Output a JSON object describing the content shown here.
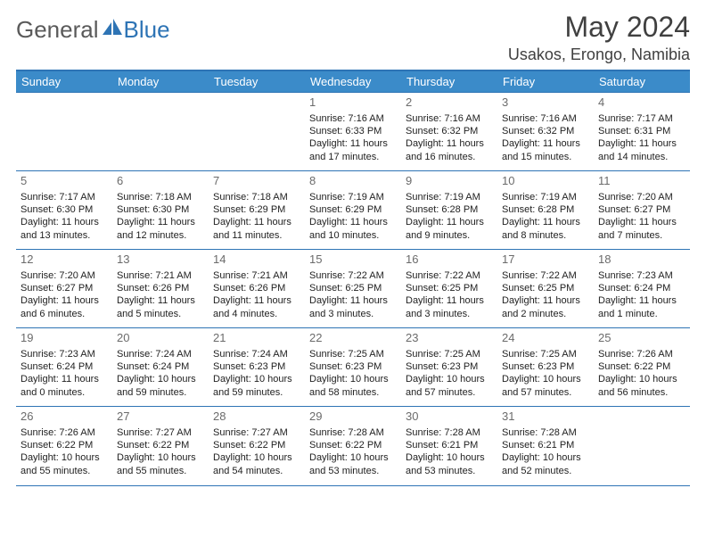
{
  "logo": {
    "text1": "General",
    "text2": "Blue"
  },
  "title": "May 2024",
  "location": "Usakos, Erongo, Namibia",
  "colors": {
    "header_bg": "#3b8bc9",
    "rule": "#2e74b5",
    "title_color": "#404040",
    "daynum_color": "#6b6b6b"
  },
  "weekdays": [
    "Sunday",
    "Monday",
    "Tuesday",
    "Wednesday",
    "Thursday",
    "Friday",
    "Saturday"
  ],
  "weeks": [
    [
      null,
      null,
      null,
      {
        "n": "1",
        "sr": "7:16 AM",
        "ss": "6:33 PM",
        "dl": "11 hours and 17 minutes."
      },
      {
        "n": "2",
        "sr": "7:16 AM",
        "ss": "6:32 PM",
        "dl": "11 hours and 16 minutes."
      },
      {
        "n": "3",
        "sr": "7:16 AM",
        "ss": "6:32 PM",
        "dl": "11 hours and 15 minutes."
      },
      {
        "n": "4",
        "sr": "7:17 AM",
        "ss": "6:31 PM",
        "dl": "11 hours and 14 minutes."
      }
    ],
    [
      {
        "n": "5",
        "sr": "7:17 AM",
        "ss": "6:30 PM",
        "dl": "11 hours and 13 minutes."
      },
      {
        "n": "6",
        "sr": "7:18 AM",
        "ss": "6:30 PM",
        "dl": "11 hours and 12 minutes."
      },
      {
        "n": "7",
        "sr": "7:18 AM",
        "ss": "6:29 PM",
        "dl": "11 hours and 11 minutes."
      },
      {
        "n": "8",
        "sr": "7:19 AM",
        "ss": "6:29 PM",
        "dl": "11 hours and 10 minutes."
      },
      {
        "n": "9",
        "sr": "7:19 AM",
        "ss": "6:28 PM",
        "dl": "11 hours and 9 minutes."
      },
      {
        "n": "10",
        "sr": "7:19 AM",
        "ss": "6:28 PM",
        "dl": "11 hours and 8 minutes."
      },
      {
        "n": "11",
        "sr": "7:20 AM",
        "ss": "6:27 PM",
        "dl": "11 hours and 7 minutes."
      }
    ],
    [
      {
        "n": "12",
        "sr": "7:20 AM",
        "ss": "6:27 PM",
        "dl": "11 hours and 6 minutes."
      },
      {
        "n": "13",
        "sr": "7:21 AM",
        "ss": "6:26 PM",
        "dl": "11 hours and 5 minutes."
      },
      {
        "n": "14",
        "sr": "7:21 AM",
        "ss": "6:26 PM",
        "dl": "11 hours and 4 minutes."
      },
      {
        "n": "15",
        "sr": "7:22 AM",
        "ss": "6:25 PM",
        "dl": "11 hours and 3 minutes."
      },
      {
        "n": "16",
        "sr": "7:22 AM",
        "ss": "6:25 PM",
        "dl": "11 hours and 3 minutes."
      },
      {
        "n": "17",
        "sr": "7:22 AM",
        "ss": "6:25 PM",
        "dl": "11 hours and 2 minutes."
      },
      {
        "n": "18",
        "sr": "7:23 AM",
        "ss": "6:24 PM",
        "dl": "11 hours and 1 minute."
      }
    ],
    [
      {
        "n": "19",
        "sr": "7:23 AM",
        "ss": "6:24 PM",
        "dl": "11 hours and 0 minutes."
      },
      {
        "n": "20",
        "sr": "7:24 AM",
        "ss": "6:24 PM",
        "dl": "10 hours and 59 minutes."
      },
      {
        "n": "21",
        "sr": "7:24 AM",
        "ss": "6:23 PM",
        "dl": "10 hours and 59 minutes."
      },
      {
        "n": "22",
        "sr": "7:25 AM",
        "ss": "6:23 PM",
        "dl": "10 hours and 58 minutes."
      },
      {
        "n": "23",
        "sr": "7:25 AM",
        "ss": "6:23 PM",
        "dl": "10 hours and 57 minutes."
      },
      {
        "n": "24",
        "sr": "7:25 AM",
        "ss": "6:23 PM",
        "dl": "10 hours and 57 minutes."
      },
      {
        "n": "25",
        "sr": "7:26 AM",
        "ss": "6:22 PM",
        "dl": "10 hours and 56 minutes."
      }
    ],
    [
      {
        "n": "26",
        "sr": "7:26 AM",
        "ss": "6:22 PM",
        "dl": "10 hours and 55 minutes."
      },
      {
        "n": "27",
        "sr": "7:27 AM",
        "ss": "6:22 PM",
        "dl": "10 hours and 55 minutes."
      },
      {
        "n": "28",
        "sr": "7:27 AM",
        "ss": "6:22 PM",
        "dl": "10 hours and 54 minutes."
      },
      {
        "n": "29",
        "sr": "7:28 AM",
        "ss": "6:22 PM",
        "dl": "10 hours and 53 minutes."
      },
      {
        "n": "30",
        "sr": "7:28 AM",
        "ss": "6:21 PM",
        "dl": "10 hours and 53 minutes."
      },
      {
        "n": "31",
        "sr": "7:28 AM",
        "ss": "6:21 PM",
        "dl": "10 hours and 52 minutes."
      },
      null
    ]
  ],
  "labels": {
    "sunrise": "Sunrise: ",
    "sunset": "Sunset: ",
    "daylight": "Daylight: "
  }
}
